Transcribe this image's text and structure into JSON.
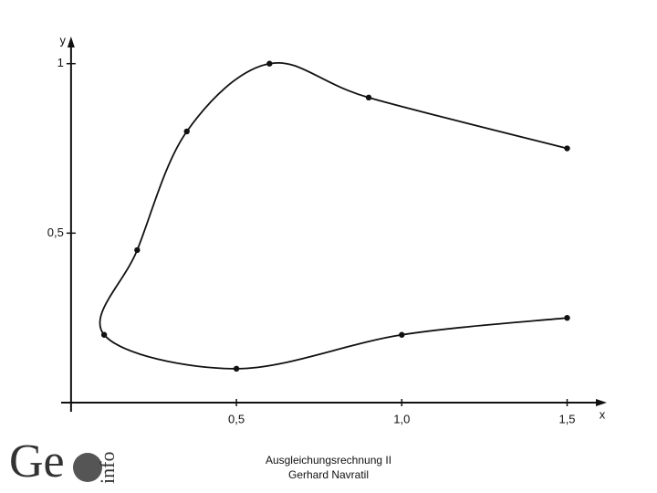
{
  "chart_data": {
    "type": "line",
    "x_label": "x",
    "y_label": "y",
    "series": [
      {
        "color": "#111111",
        "x": [
          1.5,
          0.9,
          0.6,
          0.35,
          0.2,
          0.1,
          0.5,
          1.0,
          1.5
        ],
        "values": [
          0.75,
          0.9,
          1.0,
          0.8,
          0.45,
          0.2,
          0.1,
          0.2,
          0.25
        ]
      }
    ],
    "xlim": [
      -0.03,
      1.62
    ],
    "ylim": [
      0,
      1.08
    ],
    "xticks": [
      {
        "value": 0.5,
        "label": "0,5"
      },
      {
        "value": 1.0,
        "label": "1,0"
      },
      {
        "value": 1.5,
        "label": "1,5"
      }
    ],
    "yticks": [
      {
        "value": 0.5,
        "label": "0,5"
      },
      1
    ]
  },
  "footer": {
    "logo_main": "Ge",
    "logo_side": "info",
    "lines": [
      "Ausgleichungsrechnung II",
      "Gerhard Navratil"
    ]
  }
}
